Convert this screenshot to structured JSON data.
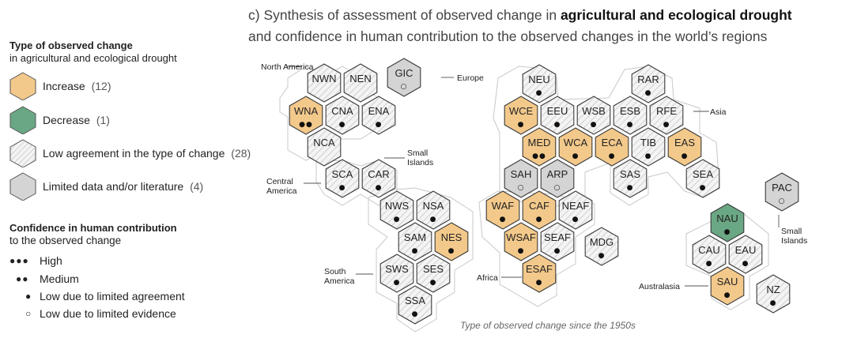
{
  "title": {
    "prefix": "c) Synthesis of assessment of observed change in ",
    "emphasis": "agricultural and ecological drought",
    "line2": "and confidence in human contribution to the observed changes in the world’s regions"
  },
  "legend": {
    "type_heading": "Type of observed change",
    "type_subheading": "in agricultural and ecological drought",
    "items": [
      {
        "label": "Increase",
        "count": "(12)",
        "fill": "#f3c98b"
      },
      {
        "label": "Decrease",
        "count": "(1)",
        "fill": "#6aa784"
      },
      {
        "label": "Low agreement in the type of change",
        "count": "(28)",
        "fill": "hatched"
      },
      {
        "label": "Limited data and/or literature",
        "count": "(4)",
        "fill": "#d4d4d4"
      }
    ],
    "confidence_heading": "Confidence in human contribution",
    "confidence_subheading": "to the observed change",
    "confidence": [
      {
        "symbol": "●●●",
        "label": "High"
      },
      {
        "symbol": "●●",
        "label": "Medium"
      },
      {
        "symbol": "●",
        "label": "Low due to limited agreement"
      },
      {
        "symbol": "○",
        "label": "Low due to limited evidence"
      }
    ]
  },
  "region_labels": {
    "north_america": "North America",
    "central_america": "Central America",
    "small_islands_1": "Small Islands",
    "south_america": "South America",
    "europe": "Europe",
    "asia": "Asia",
    "africa": "Africa",
    "australasia": "Australasia",
    "small_islands_2": "Small Islands"
  },
  "caption": "Type of observed change since the 1950s",
  "colors": {
    "increase": "#f3c98b",
    "decrease": "#6aa784",
    "limited": "#d4d4d4",
    "hatch_bg": "#f4f4f4",
    "hatch_line": "#cfcfcf",
    "outline": "#3a3a3a"
  },
  "hexes": [
    {
      "code": "NWN",
      "type": "low",
      "conf": ""
    },
    {
      "code": "NEN",
      "type": "low",
      "conf": ""
    },
    {
      "code": "GIC",
      "type": "limited",
      "conf": "○"
    },
    {
      "code": "WNA",
      "type": "increase",
      "conf": "●●"
    },
    {
      "code": "CNA",
      "type": "low",
      "conf": "●"
    },
    {
      "code": "ENA",
      "type": "low",
      "conf": "●"
    },
    {
      "code": "NCA",
      "type": "low",
      "conf": ""
    },
    {
      "code": "SCA",
      "type": "low",
      "conf": "●"
    },
    {
      "code": "CAR",
      "type": "low",
      "conf": "●"
    },
    {
      "code": "NWS",
      "type": "low",
      "conf": "●"
    },
    {
      "code": "NSA",
      "type": "low",
      "conf": "●"
    },
    {
      "code": "SAM",
      "type": "low",
      "conf": "●"
    },
    {
      "code": "NES",
      "type": "increase",
      "conf": "●"
    },
    {
      "code": "SWS",
      "type": "low",
      "conf": "●"
    },
    {
      "code": "SES",
      "type": "low",
      "conf": "●"
    },
    {
      "code": "SSA",
      "type": "low",
      "conf": "●"
    },
    {
      "code": "NEU",
      "type": "low",
      "conf": "●"
    },
    {
      "code": "RAR",
      "type": "low",
      "conf": "●"
    },
    {
      "code": "WCE",
      "type": "increase",
      "conf": "●"
    },
    {
      "code": "EEU",
      "type": "low",
      "conf": "●"
    },
    {
      "code": "WSB",
      "type": "low",
      "conf": "●"
    },
    {
      "code": "ESB",
      "type": "low",
      "conf": "●"
    },
    {
      "code": "RFE",
      "type": "low",
      "conf": "●"
    },
    {
      "code": "MED",
      "type": "increase",
      "conf": "●●"
    },
    {
      "code": "WCA",
      "type": "increase",
      "conf": "●"
    },
    {
      "code": "ECA",
      "type": "increase",
      "conf": "●"
    },
    {
      "code": "TIB",
      "type": "low",
      "conf": "●"
    },
    {
      "code": "EAS",
      "type": "increase",
      "conf": "●"
    },
    {
      "code": "SAH",
      "type": "limited",
      "conf": "○"
    },
    {
      "code": "ARP",
      "type": "limited",
      "conf": "○"
    },
    {
      "code": "SAS",
      "type": "low",
      "conf": "●"
    },
    {
      "code": "SEA",
      "type": "low",
      "conf": "●"
    },
    {
      "code": "WAF",
      "type": "increase",
      "conf": "●"
    },
    {
      "code": "CAF",
      "type": "increase",
      "conf": "●"
    },
    {
      "code": "NEAF",
      "type": "low",
      "conf": "●"
    },
    {
      "code": "WSAF",
      "type": "increase",
      "conf": "●"
    },
    {
      "code": "SEAF",
      "type": "low",
      "conf": "●"
    },
    {
      "code": "MDG",
      "type": "low",
      "conf": "●"
    },
    {
      "code": "ESAF",
      "type": "increase",
      "conf": "●"
    },
    {
      "code": "PAC",
      "type": "limited",
      "conf": "○"
    },
    {
      "code": "NAU",
      "type": "decrease",
      "conf": "●"
    },
    {
      "code": "CAU",
      "type": "low",
      "conf": "●"
    },
    {
      "code": "EAU",
      "type": "low",
      "conf": "●"
    },
    {
      "code": "SAU",
      "type": "increase",
      "conf": "●"
    },
    {
      "code": "NZ",
      "type": "low",
      "conf": "●"
    }
  ]
}
